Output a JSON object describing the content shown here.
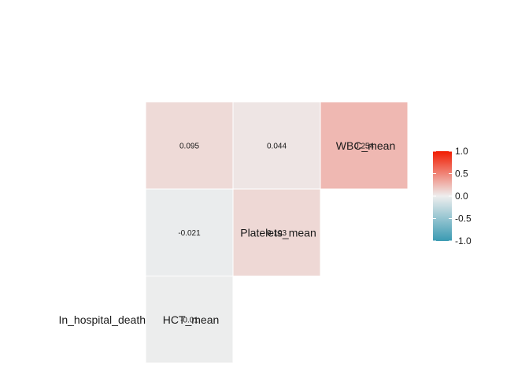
{
  "chart_data": {
    "type": "heatmap",
    "title": "",
    "variables": [
      "In_hospital_death",
      "HCT_mean",
      "Platelets_mean",
      "WBC_mean"
    ],
    "cells": [
      {
        "row": "HCT_mean",
        "col": "In_hospital_death",
        "value": -0.01,
        "label": "-0.01"
      },
      {
        "row": "Platelets_mean",
        "col": "In_hospital_death",
        "value": -0.021,
        "label": "-0.021"
      },
      {
        "row": "Platelets_mean",
        "col": "HCT_mean",
        "value": 0.103,
        "label": "0.103"
      },
      {
        "row": "WBC_mean",
        "col": "In_hospital_death",
        "value": 0.095,
        "label": "0.095"
      },
      {
        "row": "WBC_mean",
        "col": "HCT_mean",
        "value": 0.044,
        "label": "0.044"
      },
      {
        "row": "WBC_mean",
        "col": "Platelets_mean",
        "value": 0.254,
        "label": "0.254"
      }
    ],
    "color_scale": {
      "low": "#3A9AB2",
      "mid": "#EEEEEE",
      "high": "#F11B00",
      "limits": [
        -1,
        1
      ]
    },
    "legend": {
      "position": "right",
      "ticks": [
        {
          "value": 1,
          "label": "1.0"
        },
        {
          "value": 0.5,
          "label": "0.5"
        },
        {
          "value": 0,
          "label": "0.0"
        },
        {
          "value": -0.5,
          "label": "-0.5"
        },
        {
          "value": -1,
          "label": "-1.0"
        }
      ]
    }
  }
}
